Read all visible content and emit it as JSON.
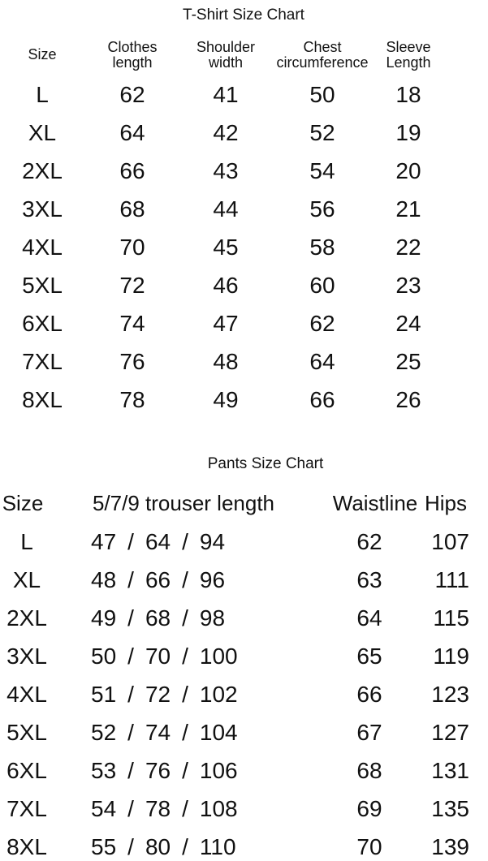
{
  "tshirt": {
    "title": "T-Shirt Size Chart",
    "headers": [
      "Size",
      "Clothes\nlength",
      "Shoulder\nwidth",
      "Chest\ncircumference",
      "Sleeve\nLength"
    ],
    "rows": [
      [
        "L",
        "62",
        "41",
        "50",
        "18"
      ],
      [
        "XL",
        "64",
        "42",
        "52",
        "19"
      ],
      [
        "2XL",
        "66",
        "43",
        "54",
        "20"
      ],
      [
        "3XL",
        "68",
        "44",
        "56",
        "21"
      ],
      [
        "4XL",
        "70",
        "45",
        "58",
        "22"
      ],
      [
        "5XL",
        "72",
        "46",
        "60",
        "23"
      ],
      [
        "6XL",
        "74",
        "47",
        "62",
        "24"
      ],
      [
        "7XL",
        "76",
        "48",
        "64",
        "25"
      ],
      [
        "8XL",
        "78",
        "49",
        "66",
        "26"
      ]
    ]
  },
  "pants": {
    "title": "Pants Size Chart",
    "headers": [
      "Size",
      "5/7/9 trouser length",
      "Waistline",
      "Hips"
    ],
    "rows": [
      {
        "size": "L",
        "trouser": [
          "47",
          "64",
          "94"
        ],
        "waist": "62",
        "hips": "107"
      },
      {
        "size": "XL",
        "trouser": [
          "48",
          "66",
          "96"
        ],
        "waist": "63",
        "hips": "111"
      },
      {
        "size": "2XL",
        "trouser": [
          "49",
          "68",
          "98"
        ],
        "waist": "64",
        "hips": "115"
      },
      {
        "size": "3XL",
        "trouser": [
          "50",
          "70",
          "100"
        ],
        "waist": "65",
        "hips": "119"
      },
      {
        "size": "4XL",
        "trouser": [
          "51",
          "72",
          "102"
        ],
        "waist": "66",
        "hips": "123"
      },
      {
        "size": "5XL",
        "trouser": [
          "52",
          "74",
          "104"
        ],
        "waist": "67",
        "hips": "127"
      },
      {
        "size": "6XL",
        "trouser": [
          "53",
          "76",
          "106"
        ],
        "waist": "68",
        "hips": "131"
      },
      {
        "size": "7XL",
        "trouser": [
          "54",
          "78",
          "108"
        ],
        "waist": "69",
        "hips": "135"
      },
      {
        "size": "8XL",
        "trouser": [
          "55",
          "80",
          "110"
        ],
        "waist": "70",
        "hips": "139"
      }
    ]
  }
}
